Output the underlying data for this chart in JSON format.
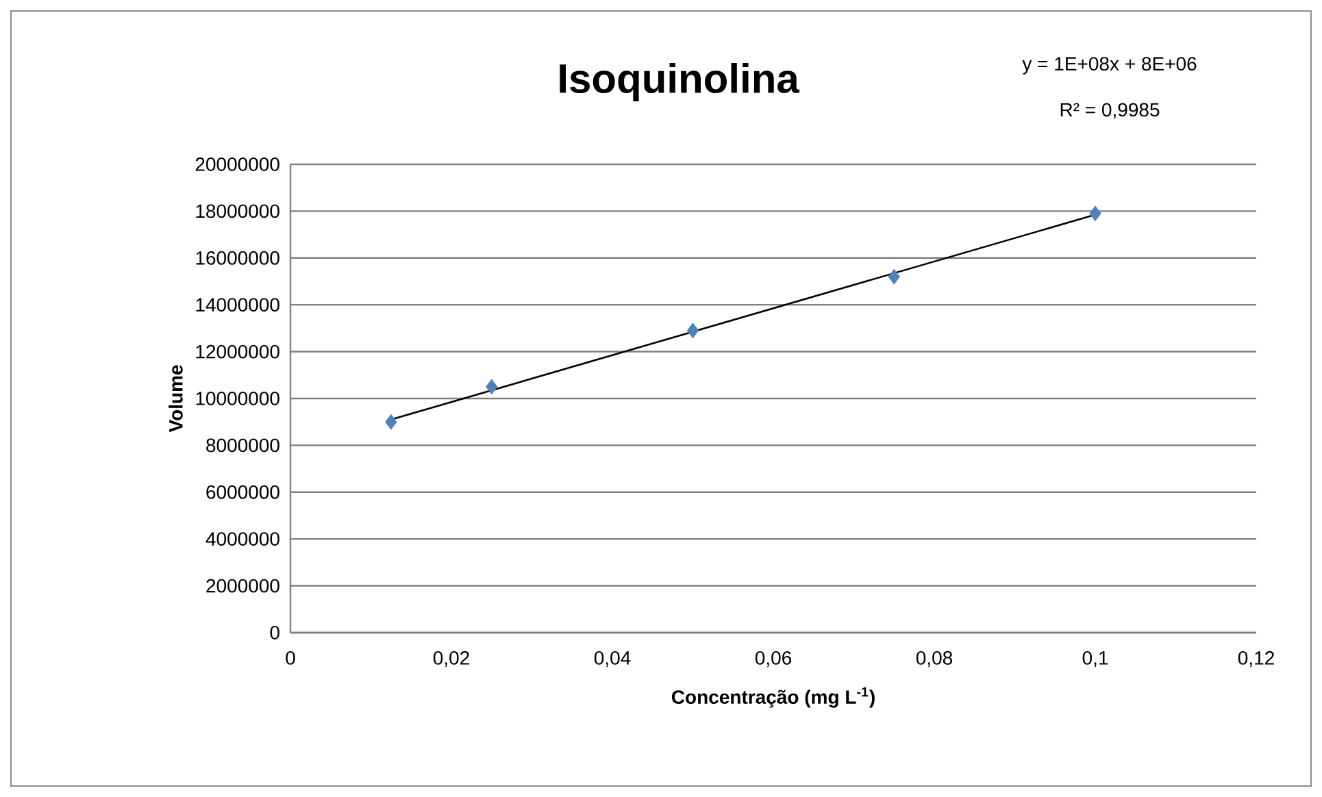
{
  "chart_data": {
    "type": "scatter",
    "title": "Isoquinolina",
    "xlabel": "Concentração (mg L$^{-1}$)",
    "ylabel": "Volume",
    "annotations": [
      "y = 1E+08x + 8E+06",
      "R² = 0,9985"
    ],
    "series": [
      {
        "color": "#4f81bd",
        "marker": "diamond",
        "x": [
          0.0125,
          0.025,
          0.05,
          0.075,
          0.1
        ],
        "values": [
          9000000,
          10500000,
          12900000,
          15200000,
          17900000
        ]
      },
      {
        "type": "line",
        "color": "#000000",
        "marker": "none",
        "line_style": "solid",
        "x": [
          0.0125,
          0.1
        ],
        "values": [
          9100000,
          17850000
        ]
      }
    ],
    "xlim": [
      0,
      0.12
    ],
    "ylim": [
      0,
      20000000
    ],
    "xticks": [
      0,
      {
        "value": 0.02,
        "label": "0,02"
      },
      {
        "value": 0.04,
        "label": "0,04"
      },
      {
        "value": 0.06,
        "label": "0,06"
      },
      {
        "value": 0.08,
        "label": "0,08"
      },
      {
        "value": 0.1,
        "label": "0,1"
      },
      {
        "value": 0.12,
        "label": "0,12"
      }
    ],
    "yticks": [
      0,
      2000000,
      4000000,
      6000000,
      8000000,
      10000000,
      12000000,
      14000000,
      16000000,
      18000000,
      20000000
    ],
    "grid": "y"
  }
}
